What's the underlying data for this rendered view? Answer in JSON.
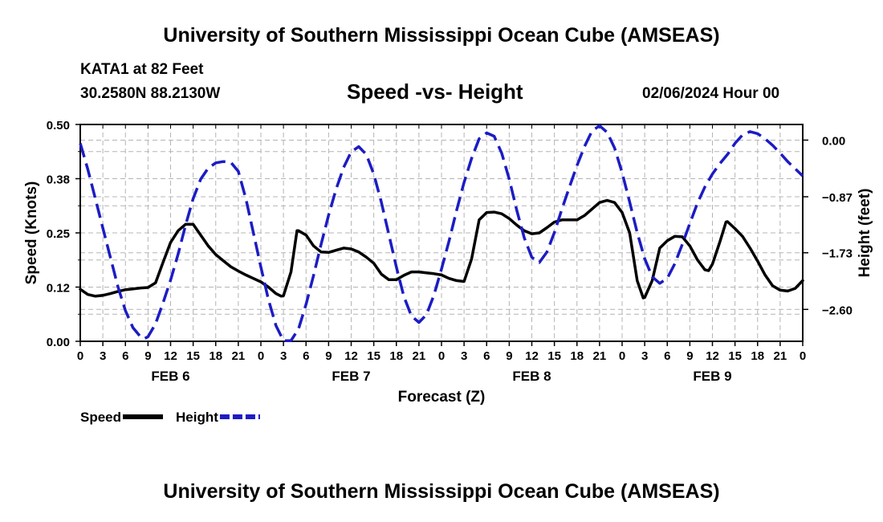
{
  "header": {
    "title": "University of Southern Mississippi Ocean Cube (AMSEAS)",
    "station": "KATA1 at 82 Feet",
    "coordinates": "30.2580N  88.2130W",
    "subtitle": "Speed -vs- Height",
    "date": "02/06/2024 Hour 00"
  },
  "footer": {
    "title": "University of Southern Mississippi Ocean Cube (AMSEAS)"
  },
  "chart_data": {
    "type": "line",
    "title": "Speed -vs- Height",
    "xlabel": "Forecast (Z)",
    "ylabel_left": "Speed (Knots)",
    "ylabel_right": "Height (feet)",
    "x_range": [
      0,
      96
    ],
    "x_ticks": [
      0,
      3,
      6,
      9,
      12,
      15,
      18,
      21,
      24,
      27,
      30,
      33,
      36,
      39,
      42,
      45,
      48,
      51,
      54,
      57,
      60,
      63,
      66,
      69,
      72,
      75,
      78,
      81,
      84,
      87,
      90,
      93,
      96
    ],
    "x_tick_labels": [
      "0",
      "3",
      "6",
      "9",
      "12",
      "15",
      "18",
      "21",
      "0",
      "3",
      "6",
      "9",
      "12",
      "15",
      "18",
      "21",
      "0",
      "3",
      "6",
      "9",
      "12",
      "15",
      "18",
      "21",
      "0",
      "3",
      "6",
      "9",
      "12",
      "15",
      "18",
      "21",
      "0"
    ],
    "day_labels": [
      {
        "label": "FEB 6",
        "hour": 12
      },
      {
        "label": "FEB 7",
        "hour": 36
      },
      {
        "label": "FEB 8",
        "hour": 60
      },
      {
        "label": "FEB 9",
        "hour": 84
      }
    ],
    "y_left": {
      "range": [
        0,
        0.5
      ],
      "ticks": [
        0,
        0.125,
        0.25,
        0.375,
        0.5
      ],
      "tick_labels": [
        "0.00",
        "0.12",
        "0.25",
        "0.38",
        "0.50"
      ]
    },
    "y_right": {
      "range": [
        -3.09,
        0.24
      ],
      "ticks": [
        0,
        -0.87,
        -1.73,
        -2.6
      ],
      "tick_labels": [
        "0.00",
        "−0.87",
        "−1.73",
        "−2.60"
      ]
    },
    "grid": true,
    "legend_position": "bottom-left",
    "series": [
      {
        "name": "Speed",
        "axis": "left",
        "color": "#000000",
        "style": "solid",
        "points": [
          [
            0,
            0.12
          ],
          [
            1,
            0.108
          ],
          [
            2,
            0.104
          ],
          [
            3,
            0.106
          ],
          [
            4,
            0.11
          ],
          [
            5,
            0.115
          ],
          [
            6,
            0.119
          ],
          [
            7,
            0.121
          ],
          [
            8,
            0.123
          ],
          [
            9,
            0.124
          ],
          [
            10,
            0.135
          ],
          [
            11,
            0.182
          ],
          [
            12,
            0.228
          ],
          [
            13,
            0.255
          ],
          [
            14,
            0.27
          ],
          [
            15,
            0.27
          ],
          [
            16,
            0.245
          ],
          [
            17,
            0.22
          ],
          [
            18,
            0.2
          ],
          [
            19,
            0.186
          ],
          [
            20,
            0.172
          ],
          [
            21,
            0.162
          ],
          [
            22,
            0.153
          ],
          [
            23,
            0.145
          ],
          [
            24,
            0.137
          ],
          [
            25,
            0.125
          ],
          [
            26,
            0.11
          ],
          [
            26.7,
            0.104
          ],
          [
            27,
            0.105
          ],
          [
            28,
            0.16
          ],
          [
            28.8,
            0.255
          ],
          [
            29,
            0.255
          ],
          [
            30,
            0.245
          ],
          [
            31,
            0.22
          ],
          [
            32,
            0.206
          ],
          [
            33,
            0.205
          ],
          [
            34,
            0.21
          ],
          [
            35,
            0.215
          ],
          [
            36,
            0.213
          ],
          [
            37,
            0.206
          ],
          [
            38,
            0.194
          ],
          [
            39,
            0.18
          ],
          [
            40,
            0.155
          ],
          [
            41,
            0.142
          ],
          [
            42,
            0.142
          ],
          [
            43,
            0.152
          ],
          [
            44,
            0.16
          ],
          [
            45,
            0.16
          ],
          [
            46,
            0.158
          ],
          [
            47,
            0.156
          ],
          [
            48,
            0.153
          ],
          [
            49,
            0.145
          ],
          [
            50,
            0.14
          ],
          [
            51,
            0.138
          ],
          [
            52,
            0.19
          ],
          [
            53,
            0.28
          ],
          [
            54,
            0.297
          ],
          [
            55,
            0.298
          ],
          [
            56,
            0.294
          ],
          [
            57,
            0.283
          ],
          [
            58,
            0.268
          ],
          [
            59,
            0.255
          ],
          [
            60,
            0.248
          ],
          [
            61,
            0.25
          ],
          [
            62,
            0.262
          ],
          [
            63,
            0.275
          ],
          [
            64,
            0.28
          ],
          [
            65,
            0.28
          ],
          [
            66,
            0.28
          ],
          [
            67,
            0.29
          ],
          [
            68,
            0.305
          ],
          [
            69,
            0.32
          ],
          [
            70,
            0.325
          ],
          [
            71,
            0.32
          ],
          [
            72,
            0.297
          ],
          [
            73,
            0.25
          ],
          [
            74,
            0.14
          ],
          [
            74.8,
            0.1
          ],
          [
            75,
            0.101
          ],
          [
            76,
            0.14
          ],
          [
            77,
            0.215
          ],
          [
            78,
            0.232
          ],
          [
            79,
            0.242
          ],
          [
            80,
            0.241
          ],
          [
            81,
            0.22
          ],
          [
            82,
            0.188
          ],
          [
            83,
            0.165
          ],
          [
            83.5,
            0.163
          ],
          [
            84,
            0.178
          ],
          [
            85,
            0.23
          ],
          [
            85.8,
            0.275
          ],
          [
            86,
            0.276
          ],
          [
            87,
            0.26
          ],
          [
            88,
            0.242
          ],
          [
            89,
            0.215
          ],
          [
            90,
            0.185
          ],
          [
            91,
            0.153
          ],
          [
            92,
            0.128
          ],
          [
            93,
            0.118
          ],
          [
            94,
            0.116
          ],
          [
            95,
            0.122
          ],
          [
            96,
            0.14
          ]
        ]
      },
      {
        "name": "Height",
        "axis": "right",
        "color": "#1c1cc4",
        "style": "dashed",
        "points": [
          [
            0,
            -0.05
          ],
          [
            1,
            -0.45
          ],
          [
            2,
            -0.9
          ],
          [
            3,
            -1.35
          ],
          [
            4,
            -1.8
          ],
          [
            5,
            -2.25
          ],
          [
            6,
            -2.62
          ],
          [
            7,
            -2.88
          ],
          [
            8,
            -3.02
          ],
          [
            8.5,
            -3.05
          ],
          [
            9,
            -3.02
          ],
          [
            10,
            -2.82
          ],
          [
            11,
            -2.5
          ],
          [
            12,
            -2.15
          ],
          [
            13,
            -1.75
          ],
          [
            14,
            -1.3
          ],
          [
            15,
            -0.9
          ],
          [
            16,
            -0.6
          ],
          [
            17,
            -0.43
          ],
          [
            18,
            -0.35
          ],
          [
            19,
            -0.33
          ],
          [
            20,
            -0.34
          ],
          [
            21,
            -0.48
          ],
          [
            22,
            -0.9
          ],
          [
            23,
            -1.42
          ],
          [
            24,
            -1.95
          ],
          [
            25,
            -2.45
          ],
          [
            26,
            -2.85
          ],
          [
            27,
            -3.08
          ],
          [
            28,
            -3.08
          ],
          [
            29,
            -2.9
          ],
          [
            30,
            -2.52
          ],
          [
            31,
            -2.08
          ],
          [
            32,
            -1.6
          ],
          [
            33,
            -1.15
          ],
          [
            34,
            -0.75
          ],
          [
            35,
            -0.42
          ],
          [
            36,
            -0.18
          ],
          [
            37,
            -0.1
          ],
          [
            38,
            -0.22
          ],
          [
            39,
            -0.52
          ],
          [
            40,
            -0.95
          ],
          [
            41,
            -1.45
          ],
          [
            42,
            -1.95
          ],
          [
            43,
            -2.4
          ],
          [
            44,
            -2.7
          ],
          [
            45,
            -2.8
          ],
          [
            46,
            -2.68
          ],
          [
            47,
            -2.38
          ],
          [
            48,
            -1.98
          ],
          [
            49,
            -1.55
          ],
          [
            50,
            -1.08
          ],
          [
            51,
            -0.65
          ],
          [
            52,
            -0.28
          ],
          [
            53,
            0.02
          ],
          [
            54,
            0.11
          ],
          [
            55,
            0.06
          ],
          [
            56,
            -0.2
          ],
          [
            57,
            -0.6
          ],
          [
            58,
            -1.08
          ],
          [
            59,
            -1.5
          ],
          [
            60,
            -1.8
          ],
          [
            61,
            -1.88
          ],
          [
            62,
            -1.72
          ],
          [
            63,
            -1.42
          ],
          [
            64,
            -1.06
          ],
          [
            65,
            -0.72
          ],
          [
            66,
            -0.39
          ],
          [
            67,
            -0.1
          ],
          [
            68,
            0.14
          ],
          [
            69,
            0.22
          ],
          [
            70,
            0.12
          ],
          [
            71,
            -0.12
          ],
          [
            72,
            -0.5
          ],
          [
            73,
            -0.95
          ],
          [
            74,
            -1.42
          ],
          [
            75,
            -1.82
          ],
          [
            76,
            -2.1
          ],
          [
            77,
            -2.2
          ],
          [
            78,
            -2.12
          ],
          [
            79,
            -1.9
          ],
          [
            80,
            -1.6
          ],
          [
            81,
            -1.28
          ],
          [
            82,
            -0.97
          ],
          [
            83,
            -0.72
          ],
          [
            84,
            -0.52
          ],
          [
            85,
            -0.36
          ],
          [
            86,
            -0.22
          ],
          [
            87,
            -0.05
          ],
          [
            88,
            0.08
          ],
          [
            89,
            0.13
          ],
          [
            90,
            0.1
          ],
          [
            91,
            0.02
          ],
          [
            92,
            -0.08
          ],
          [
            93,
            -0.2
          ],
          [
            94,
            -0.33
          ],
          [
            95,
            -0.44
          ],
          [
            96,
            -0.55
          ]
        ]
      }
    ]
  }
}
